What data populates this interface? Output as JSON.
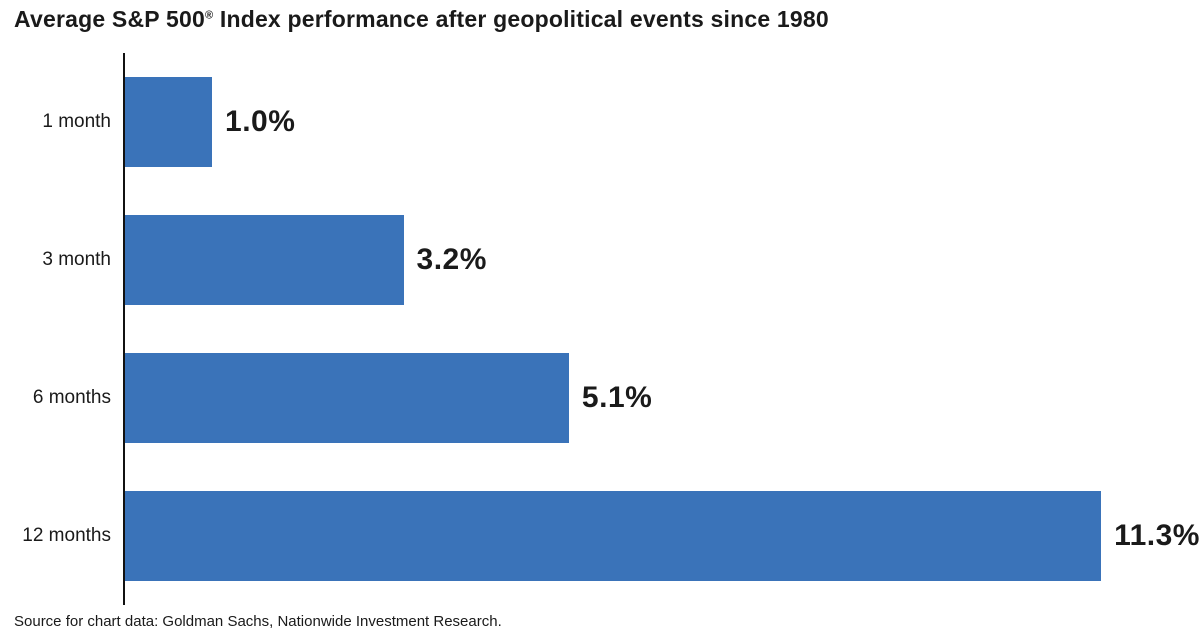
{
  "title": {
    "pre": "Average S&P 500",
    "reg_mark": "®",
    "post": " Index performance after geopolitical events since 1980"
  },
  "source": "Source for chart data: Goldman Sachs, Nationwide Investment Research.",
  "colors": {
    "bar": "#3A73B9",
    "axis": "#111111",
    "text": "#1A1A1A",
    "background": "#FFFFFF"
  },
  "chart_data": {
    "type": "bar",
    "orientation": "horizontal",
    "title": "Average S&P 500® Index performance after geopolitical events since 1980",
    "categories": [
      "1 month",
      "3 month",
      "6 months",
      "12 months"
    ],
    "values": [
      1.0,
      3.2,
      5.1,
      11.3
    ],
    "value_labels": [
      "1.0%",
      "3.2%",
      "5.1%",
      "11.3%"
    ],
    "xlabel": "",
    "ylabel": "",
    "xlim": [
      0,
      12.35
    ],
    "grid": false,
    "legend": "none",
    "source": "Source for chart data: Goldman Sachs, Nationwide Investment Research."
  }
}
